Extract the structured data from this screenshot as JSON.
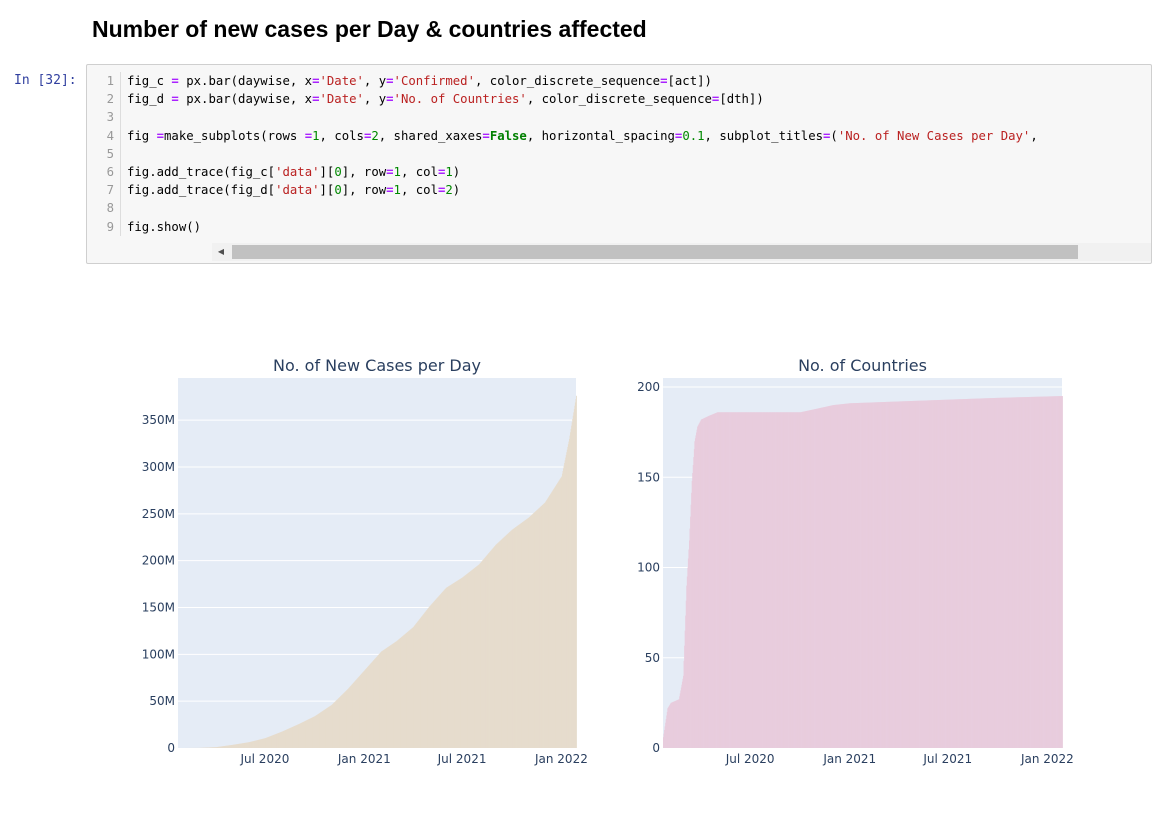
{
  "heading": "Number of new cases per Day & countries affected",
  "cell": {
    "prompt": "In [32]:",
    "lines": [
      {
        "n": "1",
        "tokens": [
          [
            "t",
            "fig_c "
          ],
          [
            "op",
            "="
          ],
          [
            "t",
            " px.bar(daywise, x"
          ],
          [
            "op",
            "="
          ],
          [
            "str",
            "'Date'"
          ],
          [
            "t",
            ", y"
          ],
          [
            "op",
            "="
          ],
          [
            "str",
            "'Confirmed'"
          ],
          [
            "t",
            ", color_discrete_sequence"
          ],
          [
            "op",
            "="
          ],
          [
            "t",
            "[act])"
          ]
        ]
      },
      {
        "n": "2",
        "tokens": [
          [
            "t",
            "fig_d "
          ],
          [
            "op",
            "="
          ],
          [
            "t",
            " px.bar(daywise, x"
          ],
          [
            "op",
            "="
          ],
          [
            "str",
            "'Date'"
          ],
          [
            "t",
            ", y"
          ],
          [
            "op",
            "="
          ],
          [
            "str",
            "'No. of Countries'"
          ],
          [
            "t",
            ", color_discrete_sequence"
          ],
          [
            "op",
            "="
          ],
          [
            "t",
            "[dth])"
          ]
        ]
      },
      {
        "n": "3",
        "tokens": []
      },
      {
        "n": "4",
        "tokens": [
          [
            "t",
            "fig "
          ],
          [
            "op",
            "="
          ],
          [
            "t",
            "make_subplots(rows "
          ],
          [
            "op",
            "="
          ],
          [
            "num",
            "1"
          ],
          [
            "t",
            ", cols"
          ],
          [
            "op",
            "="
          ],
          [
            "num",
            "2"
          ],
          [
            "t",
            ", shared_xaxes"
          ],
          [
            "op",
            "="
          ],
          [
            "kw",
            "False"
          ],
          [
            "t",
            ", horizontal_spacing"
          ],
          [
            "op",
            "="
          ],
          [
            "num",
            "0.1"
          ],
          [
            "t",
            ", subplot_titles"
          ],
          [
            "op",
            "="
          ],
          [
            "t",
            "("
          ],
          [
            "str",
            "'No. of New Cases per Day'"
          ],
          [
            "t",
            ","
          ]
        ]
      },
      {
        "n": "5",
        "tokens": []
      },
      {
        "n": "6",
        "tokens": [
          [
            "t",
            "fig.add_trace(fig_c["
          ],
          [
            "str",
            "'data'"
          ],
          [
            "t",
            "]["
          ],
          [
            "num",
            "0"
          ],
          [
            "t",
            "], row"
          ],
          [
            "op",
            "="
          ],
          [
            "num",
            "1"
          ],
          [
            "t",
            ", col"
          ],
          [
            "op",
            "="
          ],
          [
            "num",
            "1"
          ],
          [
            "t",
            ")"
          ]
        ]
      },
      {
        "n": "7",
        "tokens": [
          [
            "t",
            "fig.add_trace(fig_d["
          ],
          [
            "str",
            "'data'"
          ],
          [
            "t",
            "]["
          ],
          [
            "num",
            "0"
          ],
          [
            "t",
            "], row"
          ],
          [
            "op",
            "="
          ],
          [
            "num",
            "1"
          ],
          [
            "t",
            ", col"
          ],
          [
            "op",
            "="
          ],
          [
            "num",
            "2"
          ],
          [
            "t",
            ")"
          ]
        ]
      },
      {
        "n": "8",
        "tokens": []
      },
      {
        "n": "9",
        "tokens": [
          [
            "t",
            "fig.show()"
          ]
        ]
      }
    ]
  },
  "scrollbar": {
    "left_arrow": "◀",
    "right_arrow": "▶"
  },
  "chart_data": [
    {
      "type": "bar",
      "title": "No. of New Cases per Day",
      "color": "#e6dccd",
      "plot_bg": "#e5ecf6",
      "xlim": [
        "2020-01-22",
        "2022-01-28"
      ],
      "x_ticks": [
        {
          "value": "2020-07-01",
          "label": "Jul 2020"
        },
        {
          "value": "2021-01-01",
          "label": "Jan 2021"
        },
        {
          "value": "2021-07-01",
          "label": "Jul 2021"
        },
        {
          "value": "2022-01-01",
          "label": "Jan 2022"
        }
      ],
      "ylim": [
        0,
        395000000
      ],
      "y_ticks": [
        {
          "value": 0,
          "label": "0"
        },
        {
          "value": 50000000,
          "label": "50M"
        },
        {
          "value": 100000000,
          "label": "100M"
        },
        {
          "value": 150000000,
          "label": "150M"
        },
        {
          "value": 200000000,
          "label": "200M"
        },
        {
          "value": 250000000,
          "label": "250M"
        },
        {
          "value": 300000000,
          "label": "300M"
        },
        {
          "value": 350000000,
          "label": "350M"
        }
      ],
      "points": [
        {
          "x": "2020-01-22",
          "y": 0
        },
        {
          "x": "2020-03-01",
          "y": 90000
        },
        {
          "x": "2020-04-01",
          "y": 900000
        },
        {
          "x": "2020-05-01",
          "y": 3300000
        },
        {
          "x": "2020-06-01",
          "y": 6200000
        },
        {
          "x": "2020-07-01",
          "y": 10500000
        },
        {
          "x": "2020-08-01",
          "y": 17500000
        },
        {
          "x": "2020-09-01",
          "y": 25500000
        },
        {
          "x": "2020-10-01",
          "y": 34000000
        },
        {
          "x": "2020-11-01",
          "y": 46000000
        },
        {
          "x": "2020-12-01",
          "y": 63000000
        },
        {
          "x": "2021-01-01",
          "y": 83000000
        },
        {
          "x": "2021-02-01",
          "y": 103000000
        },
        {
          "x": "2021-03-01",
          "y": 114000000
        },
        {
          "x": "2021-04-01",
          "y": 129000000
        },
        {
          "x": "2021-05-01",
          "y": 151000000
        },
        {
          "x": "2021-06-01",
          "y": 171000000
        },
        {
          "x": "2021-07-01",
          "y": 182000000
        },
        {
          "x": "2021-08-01",
          "y": 196000000
        },
        {
          "x": "2021-09-01",
          "y": 217000000
        },
        {
          "x": "2021-10-01",
          "y": 233000000
        },
        {
          "x": "2021-11-01",
          "y": 246000000
        },
        {
          "x": "2021-12-01",
          "y": 262000000
        },
        {
          "x": "2022-01-01",
          "y": 290000000
        },
        {
          "x": "2022-01-15",
          "y": 330000000
        },
        {
          "x": "2022-01-28",
          "y": 376000000
        }
      ]
    },
    {
      "type": "bar",
      "title": "No. of Countries",
      "color": "#e8ccdd",
      "plot_bg": "#e5ecf6",
      "xlim": [
        "2020-01-22",
        "2022-01-28"
      ],
      "x_ticks": [
        {
          "value": "2020-07-01",
          "label": "Jul 2020"
        },
        {
          "value": "2021-01-01",
          "label": "Jan 2021"
        },
        {
          "value": "2021-07-01",
          "label": "Jul 2021"
        },
        {
          "value": "2022-01-01",
          "label": "Jan 2022"
        }
      ],
      "ylim": [
        0,
        205
      ],
      "y_ticks": [
        {
          "value": 0,
          "label": "0"
        },
        {
          "value": 50,
          "label": "50"
        },
        {
          "value": 100,
          "label": "100"
        },
        {
          "value": 150,
          "label": "150"
        },
        {
          "value": 200,
          "label": "200"
        }
      ],
      "points": [
        {
          "x": "2020-01-22",
          "y": 6
        },
        {
          "x": "2020-01-30",
          "y": 22
        },
        {
          "x": "2020-02-05",
          "y": 25
        },
        {
          "x": "2020-02-20",
          "y": 27
        },
        {
          "x": "2020-02-28",
          "y": 40
        },
        {
          "x": "2020-03-05",
          "y": 90
        },
        {
          "x": "2020-03-10",
          "y": 115
        },
        {
          "x": "2020-03-15",
          "y": 148
        },
        {
          "x": "2020-03-20",
          "y": 170
        },
        {
          "x": "2020-03-25",
          "y": 178
        },
        {
          "x": "2020-04-01",
          "y": 182
        },
        {
          "x": "2020-04-15",
          "y": 184
        },
        {
          "x": "2020-05-01",
          "y": 186
        },
        {
          "x": "2020-10-01",
          "y": 186
        },
        {
          "x": "2020-11-01",
          "y": 188
        },
        {
          "x": "2020-12-01",
          "y": 190
        },
        {
          "x": "2021-01-01",
          "y": 191
        },
        {
          "x": "2021-04-01",
          "y": 192
        },
        {
          "x": "2021-07-01",
          "y": 193
        },
        {
          "x": "2021-10-01",
          "y": 194
        },
        {
          "x": "2022-01-28",
          "y": 195
        }
      ]
    }
  ]
}
